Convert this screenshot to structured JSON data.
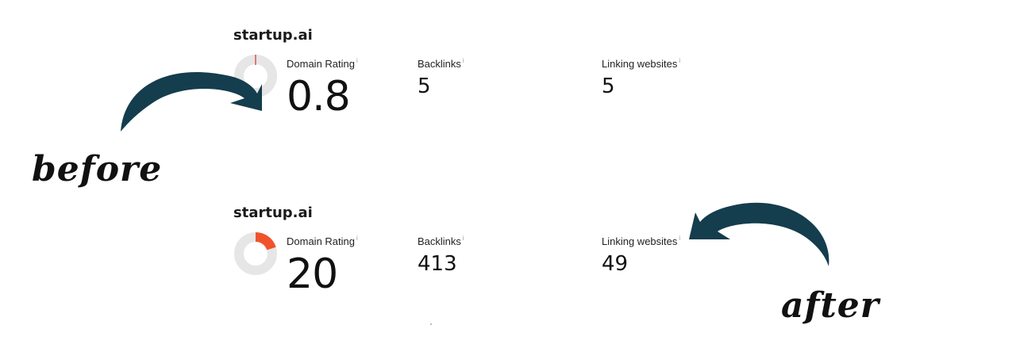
{
  "panels": [
    {
      "id": "before",
      "site": "startup.ai",
      "domain_rating": {
        "label": "Domain Rating",
        "info": "i",
        "value": "0.8",
        "gauge_fraction": 0.008
      },
      "backlinks": {
        "label": "Backlinks",
        "info": "i",
        "value": "5"
      },
      "linking_websites": {
        "label": "Linking websites",
        "info": "i",
        "value": "5"
      }
    },
    {
      "id": "after",
      "site": "startup.ai",
      "domain_rating": {
        "label": "Domain Rating",
        "info": "i",
        "value": "20",
        "gauge_fraction": 0.2
      },
      "backlinks": {
        "label": "Backlinks",
        "info": "i",
        "value": "413"
      },
      "linking_websites": {
        "label": "Linking websites",
        "info": "i",
        "value": "49"
      }
    }
  ],
  "annotations": {
    "before": "before",
    "after": "after"
  },
  "colors": {
    "gauge_track": "#e6e6e6",
    "gauge_fill_before": "#d9534f",
    "gauge_fill_after": "#f0532b",
    "arrow": "#143d4d"
  },
  "icons": {
    "info": "info-icon",
    "arrow_before": "curved-arrow-icon",
    "arrow_after": "curved-arrow-icon"
  }
}
